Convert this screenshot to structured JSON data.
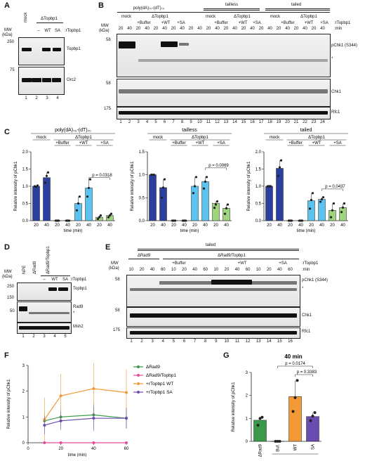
{
  "panels": {
    "A": "A",
    "B": "B",
    "C": "C",
    "D": "D",
    "E": "E",
    "F": "F",
    "G": "G"
  },
  "common": {
    "mw": "MW",
    "kda": "(kDa)",
    "minus": "–",
    "wt": "WT",
    "sa": "SA",
    "mock": "mock",
    "rtopbp1": ":rTopbp1",
    "min": ":min",
    "buffer": "+Buffer",
    "plus_wt": "+WT",
    "plus_sa": "+SA",
    "dtopbp1": "ΔTopbp1",
    "tailless": "tailless",
    "tailed": "tailed",
    "polyda": "poly(dA)₇₀-(dT)₇₀"
  },
  "panelA": {
    "markers": [
      "250",
      "75"
    ],
    "bands": [
      "Topbp1",
      "Orc2"
    ],
    "lanes": [
      "1",
      "2",
      "3",
      "4"
    ]
  },
  "panelB": {
    "markers": [
      "58",
      "58",
      "175"
    ],
    "bands": [
      "pChk1 (S344)",
      "*",
      "Chk1",
      "Rfc1"
    ],
    "times": [
      "20",
      "40",
      "20",
      "40",
      "20",
      "40",
      "20",
      "40",
      "20",
      "40",
      "20",
      "40",
      "20",
      "40",
      "20",
      "40",
      "20",
      "40",
      "20",
      "40",
      "20",
      "40",
      "20",
      "40"
    ],
    "lanes": [
      "1",
      "2",
      "3",
      "4",
      "5",
      "6",
      "7",
      "8",
      "9",
      "10",
      "11",
      "12",
      "13",
      "14",
      "15",
      "16",
      "17",
      "18",
      "19",
      "20",
      "21",
      "22",
      "23",
      "24"
    ]
  },
  "panelC": {
    "ylabel": "Relative intensity of pChk1",
    "xlabel": "time (min)",
    "yticks": [
      "0.0",
      "0.5",
      "1.0",
      "1.5",
      "2.0"
    ],
    "xticks": [
      "20",
      "40",
      "20",
      "40",
      "20",
      "40",
      "20",
      "40"
    ],
    "pvals": [
      "p = 0.0318",
      "p = 0.0069",
      "p = 0.0437"
    ]
  },
  "panelD": {
    "lanes_top": [
      "NPE",
      "ΔRad9",
      "ΔRad9/Topbp1"
    ],
    "markers": [
      "250",
      "150",
      "50"
    ],
    "bands": [
      "Topbp1",
      "Rad9",
      "*",
      "Msh2"
    ],
    "lanes": [
      "1",
      "2",
      "3",
      "4",
      "5"
    ]
  },
  "panelE": {
    "groups": [
      "ΔRad9",
      "ΔRad9/Topbp1"
    ],
    "markers": [
      "58",
      "58",
      "175"
    ],
    "bands": [
      "pChk1 (S344)",
      "*",
      "Chk1",
      "Rfc1"
    ],
    "times": [
      "10",
      "20",
      "40",
      "60",
      "10",
      "20",
      "40",
      "60",
      "10",
      "20",
      "40",
      "60",
      "10",
      "20",
      "40",
      "60"
    ],
    "lanes": [
      "1",
      "2",
      "3",
      "4",
      "5",
      "6",
      "7",
      "8",
      "9",
      "10",
      "11",
      "12",
      "13",
      "14",
      "15",
      "16"
    ]
  },
  "panelG": {
    "title": "40 min",
    "pvals": [
      "p = 0.0174",
      "p = 0.3383"
    ],
    "groupLabel": "ΔRad9/Topbp1"
  },
  "chart_data": [
    {
      "type": "bar",
      "panel": "C",
      "title": "poly(dA)₇₀-(dT)₇₀",
      "categories": [
        "mock 20",
        "mock 40",
        "ΔTopbp1 +Buffer 20",
        "ΔTopbp1 +Buffer 40",
        "+WT 20",
        "+WT 40",
        "+SA 20",
        "+SA 40"
      ],
      "values": [
        1.0,
        1.25,
        0.0,
        0.0,
        0.5,
        0.95,
        0.1,
        0.15
      ],
      "colors": [
        "#2a3f9e",
        "#2a3f9e",
        "#2a3f9e",
        "#2a3f9e",
        "#5bc3ee",
        "#5bc3ee",
        "#9ed47d",
        "#9ed47d"
      ],
      "ylabel": "Relative intensity of pChk1",
      "xlabel": "time (min)",
      "ylim": [
        0,
        2.0
      ]
    },
    {
      "type": "bar",
      "panel": "C",
      "title": "tailless",
      "categories": [
        "mock 20",
        "mock 40",
        "ΔTopbp1 +Buffer 20",
        "ΔTopbp1 +Buffer 40",
        "+WT 20",
        "+WT 40",
        "+SA 20",
        "+SA 40"
      ],
      "values": [
        1.0,
        0.72,
        0.0,
        0.0,
        0.75,
        0.85,
        0.38,
        0.27
      ],
      "colors": [
        "#2a3f9e",
        "#2a3f9e",
        "#2a3f9e",
        "#2a3f9e",
        "#5bc3ee",
        "#5bc3ee",
        "#9ed47d",
        "#9ed47d"
      ],
      "ylabel": "Relative intensity of pChk1",
      "xlabel": "time (min)",
      "ylim": [
        0,
        1.5
      ]
    },
    {
      "type": "bar",
      "panel": "C",
      "title": "tailed",
      "categories": [
        "mock 20",
        "mock 40",
        "ΔTopbp1 +Buffer 20",
        "ΔTopbp1 +Buffer 40",
        "+WT 20",
        "+WT 40",
        "+SA 20",
        "+SA 40"
      ],
      "values": [
        1.0,
        1.52,
        0.0,
        0.0,
        0.58,
        0.62,
        0.3,
        0.38
      ],
      "colors": [
        "#2a3f9e",
        "#2a3f9e",
        "#2a3f9e",
        "#2a3f9e",
        "#5bc3ee",
        "#5bc3ee",
        "#9ed47d",
        "#9ed47d"
      ],
      "ylabel": "Relative intensity of pChk1",
      "xlabel": "time (min)",
      "ylim": [
        0,
        2.0
      ]
    },
    {
      "type": "line",
      "panel": "F",
      "x": [
        10,
        20,
        40,
        60
      ],
      "series": [
        {
          "name": "ΔRad9",
          "values": [
            0.85,
            1.0,
            1.08,
            0.95
          ],
          "color": "#3a9a4a"
        },
        {
          "name": "ΔRad9/Topbp1",
          "values": [
            0.0,
            0.0,
            0.0,
            0.0
          ],
          "color": "#e14e9c"
        },
        {
          "name": "+rTopbp1 WT",
          "values": [
            0.9,
            1.82,
            2.1,
            1.95
          ],
          "color": "#f29a38"
        },
        {
          "name": "+rTopbp1 SA",
          "values": [
            0.68,
            0.85,
            0.95,
            0.95
          ],
          "color": "#6a4bb0"
        }
      ],
      "xlabel": "time (min)",
      "ylabel": "Relative intensity of pChk1",
      "ylim": [
        0,
        3
      ],
      "xlim": [
        0,
        60
      ],
      "yticks": [
        "0",
        "1",
        "2",
        "3"
      ],
      "xticks": [
        "0",
        "20",
        "40",
        "60"
      ]
    },
    {
      "type": "bar",
      "panel": "G",
      "title": "40 min",
      "categories": [
        "ΔRad9",
        "Buf.",
        "WT",
        "SA"
      ],
      "values": [
        0.92,
        0.0,
        1.95,
        1.08
      ],
      "colors": [
        "#3a9a4a",
        "#e14e9c",
        "#f29a38",
        "#6a4bb0"
      ],
      "ylabel": "Relative intensity of pChk1",
      "ylim": [
        0,
        3
      ],
      "yticks": [
        "0",
        "1",
        "2",
        "3"
      ]
    }
  ]
}
